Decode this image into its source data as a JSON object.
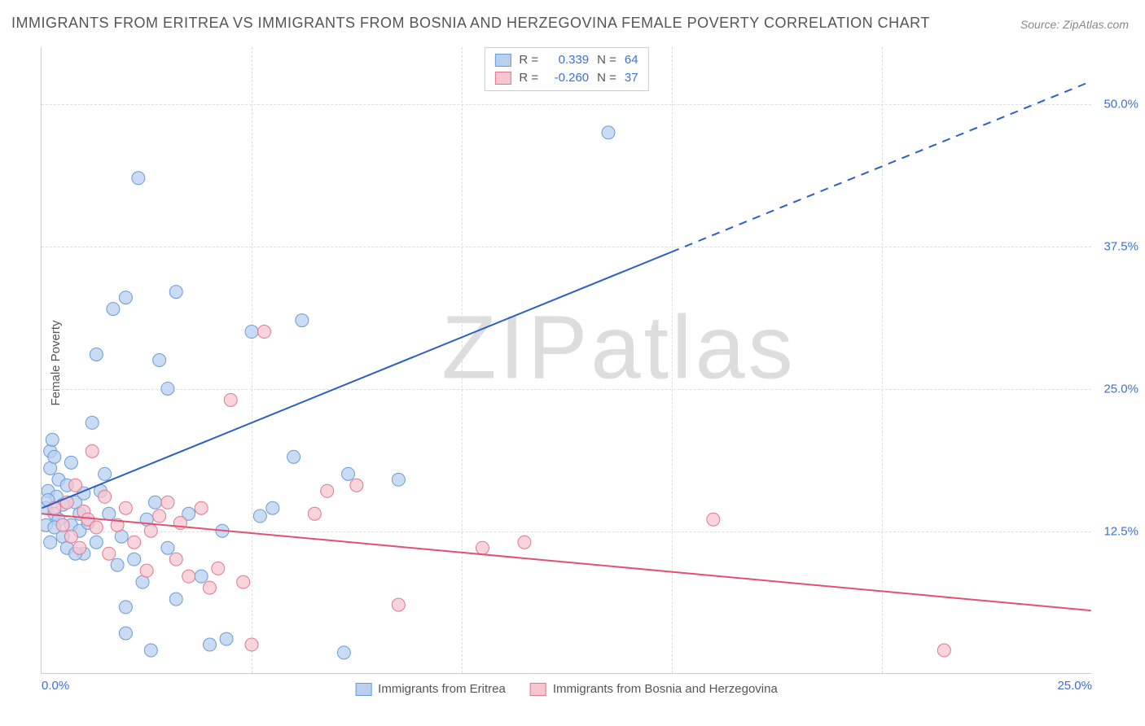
{
  "title": "IMMIGRANTS FROM ERITREA VS IMMIGRANTS FROM BOSNIA AND HERZEGOVINA FEMALE POVERTY CORRELATION CHART",
  "source": "Source: ZipAtlas.com",
  "y_axis_label": "Female Poverty",
  "watermark_zip": "ZIP",
  "watermark_atlas": "atlas",
  "chart": {
    "type": "scatter",
    "xlim": [
      0,
      25
    ],
    "ylim": [
      0,
      55
    ],
    "x_ticks": [
      0,
      5,
      10,
      15,
      20,
      25
    ],
    "x_tick_labels": [
      "0.0%",
      "",
      "",
      "",
      "",
      "25.0%"
    ],
    "y_ticks": [
      12.5,
      25.0,
      37.5,
      50.0
    ],
    "y_tick_labels": [
      "12.5%",
      "25.0%",
      "37.5%",
      "50.0%"
    ],
    "grid_color": "#dddddd",
    "background_color": "#ffffff",
    "series": [
      {
        "name": "Immigrants from Eritrea",
        "marker_fill": "#b8d0f0",
        "marker_stroke": "#6a9ad8",
        "marker_radius": 8,
        "marker_opacity": 0.75,
        "r_value": "0.339",
        "n_value": "64",
        "trend": {
          "x1": 0,
          "y1": 14.5,
          "x2_solid": 15,
          "y2_solid": 37.0,
          "x2_dash": 25,
          "y2_dash": 52.0,
          "color": "#2d5fc4",
          "width": 2
        },
        "points": [
          [
            0.1,
            13.0
          ],
          [
            0.1,
            14.5
          ],
          [
            0.15,
            16.0
          ],
          [
            0.2,
            18.0
          ],
          [
            0.2,
            19.5
          ],
          [
            0.25,
            20.5
          ],
          [
            0.3,
            19.0
          ],
          [
            0.3,
            14.0
          ],
          [
            0.35,
            15.5
          ],
          [
            0.4,
            17.0
          ],
          [
            0.4,
            13.5
          ],
          [
            0.5,
            12.0
          ],
          [
            0.5,
            14.8
          ],
          [
            0.6,
            16.5
          ],
          [
            0.6,
            11.0
          ],
          [
            0.7,
            13.0
          ],
          [
            0.7,
            18.5
          ],
          [
            0.8,
            15.0
          ],
          [
            0.9,
            12.5
          ],
          [
            0.9,
            14.0
          ],
          [
            1.0,
            10.5
          ],
          [
            1.0,
            15.8
          ],
          [
            1.1,
            13.2
          ],
          [
            1.2,
            22.0
          ],
          [
            1.3,
            11.5
          ],
          [
            1.3,
            28.0
          ],
          [
            1.5,
            17.5
          ],
          [
            1.6,
            14.0
          ],
          [
            1.7,
            32.0
          ],
          [
            1.8,
            9.5
          ],
          [
            1.9,
            12.0
          ],
          [
            2.0,
            5.8
          ],
          [
            2.0,
            33.0
          ],
          [
            2.2,
            10.0
          ],
          [
            2.3,
            43.5
          ],
          [
            2.4,
            8.0
          ],
          [
            2.5,
            13.5
          ],
          [
            2.6,
            2.0
          ],
          [
            2.7,
            15.0
          ],
          [
            2.8,
            27.5
          ],
          [
            3.0,
            25.0
          ],
          [
            3.0,
            11.0
          ],
          [
            3.2,
            33.5
          ],
          [
            3.2,
            6.5
          ],
          [
            3.5,
            14.0
          ],
          [
            3.8,
            8.5
          ],
          [
            4.0,
            2.5
          ],
          [
            4.3,
            12.5
          ],
          [
            4.4,
            3.0
          ],
          [
            5.0,
            30.0
          ],
          [
            5.2,
            13.8
          ],
          [
            5.5,
            14.5
          ],
          [
            6.0,
            19.0
          ],
          [
            6.2,
            31.0
          ],
          [
            7.2,
            1.8
          ],
          [
            7.3,
            17.5
          ],
          [
            8.5,
            17.0
          ],
          [
            2.0,
            3.5
          ],
          [
            13.5,
            47.5
          ],
          [
            0.2,
            11.5
          ],
          [
            0.3,
            12.8
          ],
          [
            0.15,
            15.2
          ],
          [
            1.4,
            16.0
          ],
          [
            0.8,
            10.5
          ]
        ]
      },
      {
        "name": "Immigrants from Bosnia and Herzegovina",
        "marker_fill": "#f5c5d0",
        "marker_stroke": "#e07890",
        "marker_radius": 8,
        "marker_opacity": 0.75,
        "r_value": "-0.260",
        "n_value": "37",
        "trend": {
          "x1": 0,
          "y1": 14.0,
          "x2_solid": 25,
          "y2_solid": 5.5,
          "x2_dash": 25,
          "y2_dash": 5.5,
          "color": "#e4506f",
          "width": 2
        },
        "points": [
          [
            0.3,
            14.5
          ],
          [
            0.5,
            13.0
          ],
          [
            0.6,
            15.0
          ],
          [
            0.7,
            12.0
          ],
          [
            0.8,
            16.5
          ],
          [
            0.9,
            11.0
          ],
          [
            1.0,
            14.2
          ],
          [
            1.1,
            13.5
          ],
          [
            1.2,
            19.5
          ],
          [
            1.3,
            12.8
          ],
          [
            1.5,
            15.5
          ],
          [
            1.6,
            10.5
          ],
          [
            1.8,
            13.0
          ],
          [
            2.0,
            14.5
          ],
          [
            2.2,
            11.5
          ],
          [
            2.5,
            9.0
          ],
          [
            2.8,
            13.8
          ],
          [
            3.0,
            15.0
          ],
          [
            3.2,
            10.0
          ],
          [
            3.5,
            8.5
          ],
          [
            3.8,
            14.5
          ],
          [
            4.0,
            7.5
          ],
          [
            4.2,
            9.2
          ],
          [
            4.5,
            24.0
          ],
          [
            4.8,
            8.0
          ],
          [
            5.0,
            2.5
          ],
          [
            5.3,
            30.0
          ],
          [
            6.5,
            14.0
          ],
          [
            6.8,
            16.0
          ],
          [
            7.5,
            16.5
          ],
          [
            8.5,
            6.0
          ],
          [
            10.5,
            11.0
          ],
          [
            11.5,
            11.5
          ],
          [
            16.0,
            13.5
          ],
          [
            21.5,
            2.0
          ],
          [
            2.6,
            12.5
          ],
          [
            3.3,
            13.2
          ]
        ]
      }
    ]
  },
  "legend_top": {
    "r_label": "R =",
    "n_label": "N ="
  },
  "legend_bottom": {
    "entries": [
      "Immigrants from Eritrea",
      "Immigrants from Bosnia and Herzegovina"
    ]
  }
}
